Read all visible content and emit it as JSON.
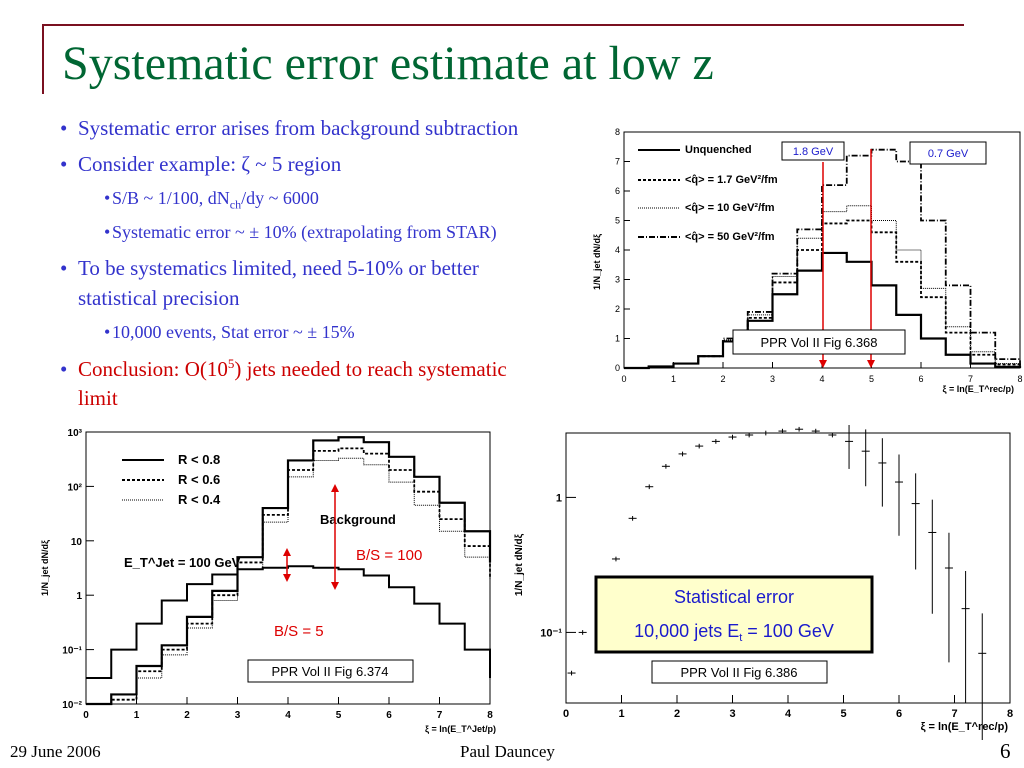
{
  "title": "Systematic error estimate at low z",
  "bullets": {
    "b1": "Systematic error arises from background subtraction",
    "b2_pre": "Consider  example: ",
    "b2_sym": "ζ",
    "b2_post": " ~ 5 region",
    "s1_pre": "S/B ~ 1/100, dN",
    "s1_sub": "ch",
    "s1_post": "/dy ~ 6000",
    "s2": "Systematic error ~ ± 10% (extrapolating from STAR)",
    "b3_line1": "To be systematics limited, need  5-10% or better",
    "b3_line2": "statistical precision",
    "s3": "10,000 events, Stat error ~ ± 15%",
    "b4_pre": "Conclusion: O(10",
    "b4_sup": "5",
    "b4_post": ") jets needed to reach systematic",
    "b4_line2": "limit"
  },
  "footer": {
    "date": "29 June 2006",
    "author": "Paul Dauncey",
    "page": "6"
  },
  "chart_data": [
    {
      "type": "line",
      "id": "fig368",
      "ylabel": "1/N_jet dN/dξ",
      "xlabel": "ξ = ln(E_T^rec/p)",
      "xlim": [
        0,
        8
      ],
      "ylim": [
        0,
        8
      ],
      "x_ticks": [
        "0",
        "1",
        "2",
        "3",
        "4",
        "5",
        "6",
        "7",
        "8"
      ],
      "y_ticks": [
        "0",
        "1",
        "2",
        "3",
        "4",
        "5",
        "6",
        "7",
        "8"
      ],
      "x": [
        0,
        0.5,
        1,
        1.5,
        2,
        2.5,
        3,
        3.5,
        4,
        4.5,
        5,
        5.5,
        6,
        6.5,
        7,
        7.5,
        8
      ],
      "series": [
        {
          "name": "Unquenched",
          "values": [
            0,
            0.05,
            0.15,
            0.4,
            0.9,
            1.6,
            2.5,
            3.3,
            3.9,
            3.6,
            2.8,
            1.8,
            1.0,
            0.45,
            0.15,
            0.04,
            0
          ]
        },
        {
          "name": "<q̂> = 1.7 GeV²/fm",
          "values": [
            0,
            0.05,
            0.15,
            0.4,
            0.9,
            1.7,
            2.9,
            4.0,
            4.9,
            5.0,
            4.6,
            3.6,
            2.4,
            1.2,
            0.45,
            0.12,
            0
          ]
        },
        {
          "name": "<q̂> = 10 GeV²/fm",
          "values": [
            0,
            0.05,
            0.15,
            0.4,
            0.95,
            1.8,
            3.1,
            4.4,
            5.3,
            5.5,
            5.0,
            4.0,
            2.7,
            1.4,
            0.55,
            0.15,
            0
          ]
        },
        {
          "name": "<q̂> = 50 GeV²/fm",
          "values": [
            0,
            0.05,
            0.15,
            0.4,
            1.0,
            1.9,
            3.2,
            4.7,
            6.2,
            7.2,
            7.4,
            7.0,
            5.0,
            2.8,
            1.2,
            0.3,
            0
          ]
        }
      ],
      "annotations": [
        "1.8  GeV",
        "0.7  GeV",
        "PPR Vol II Fig 6.368"
      ],
      "arrow_x": [
        4,
        5
      ]
    },
    {
      "type": "line",
      "id": "fig374",
      "ylabel": "1/N_jet dN/dξ",
      "xlabel": "ξ = ln(E_T^Jet/p)",
      "xlim": [
        0,
        8
      ],
      "yscale": "log",
      "ylim": [
        0.01,
        1000
      ],
      "x_ticks": [
        "0",
        "1",
        "2",
        "3",
        "4",
        "5",
        "6",
        "7",
        "8"
      ],
      "y_ticks": [
        "10⁻²",
        "10⁻¹",
        "1",
        "10",
        "10²",
        "10³"
      ],
      "x": [
        0,
        0.5,
        1,
        1.5,
        2,
        2.5,
        3,
        3.5,
        4,
        4.5,
        5,
        5.5,
        6,
        6.5,
        7,
        7.5,
        8
      ],
      "series": [
        {
          "name": "R < 0.8",
          "values": [
            0.01,
            0.015,
            0.05,
            0.12,
            0.4,
            1.2,
            5,
            40,
            300,
            700,
            800,
            650,
            350,
            150,
            50,
            15,
            4
          ]
        },
        {
          "name": "R < 0.6",
          "values": [
            0.01,
            0.012,
            0.04,
            0.1,
            0.3,
            1.0,
            4,
            30,
            200,
            450,
            500,
            400,
            200,
            80,
            25,
            8,
            2
          ]
        },
        {
          "name": "R < 0.4",
          "values": [
            0.01,
            0.01,
            0.03,
            0.08,
            0.25,
            0.8,
            3,
            22,
            150,
            300,
            330,
            250,
            120,
            45,
            15,
            5,
            1.5
          ]
        },
        {
          "name": "Background",
          "values": [
            0.03,
            0.1,
            0.3,
            0.8,
            1.6,
            2.4,
            3.0,
            3.2,
            3.4,
            3.2,
            3.0,
            2.3,
            1.4,
            0.7,
            0.3,
            0.1,
            0.03
          ]
        }
      ],
      "legend_extra": "E_T^Jet = 100 GeV",
      "annotations": [
        "Background",
        "B/S = 100",
        "B/S = 5",
        "PPR Vol II Fig 6.374"
      ]
    },
    {
      "type": "scatter",
      "id": "fig386",
      "ylabel": "1/N_jet dN/dξ",
      "xlabel": "ξ = ln(E_T^rec/p)",
      "xlim": [
        0,
        8
      ],
      "yscale": "log",
      "ylim": [
        0.03,
        3
      ],
      "x_ticks": [
        "0",
        "1",
        "2",
        "3",
        "4",
        "5",
        "6",
        "7",
        "8"
      ],
      "y_ticks": [
        "10⁻¹",
        "1"
      ],
      "x": [
        0.1,
        0.3,
        0.6,
        0.9,
        1.2,
        1.5,
        1.8,
        2.1,
        2.4,
        2.7,
        3.0,
        3.3,
        3.6,
        3.9,
        4.2,
        4.5,
        4.8,
        5.1,
        5.4,
        5.7,
        6.0,
        6.3,
        6.6,
        6.9,
        7.2,
        7.5
      ],
      "values": [
        0.05,
        0.1,
        0.15,
        0.35,
        0.7,
        1.2,
        1.7,
        2.1,
        2.4,
        2.6,
        2.8,
        2.9,
        3.0,
        3.1,
        3.2,
        3.1,
        2.9,
        2.6,
        2.2,
        1.8,
        1.3,
        0.9,
        0.55,
        0.3,
        0.15,
        0.07
      ],
      "annotations": [
        "Statistical error",
        "10,000 jets E",
        "t",
        " = 100 GeV",
        "PPR Vol II Fig 6.386"
      ]
    }
  ]
}
